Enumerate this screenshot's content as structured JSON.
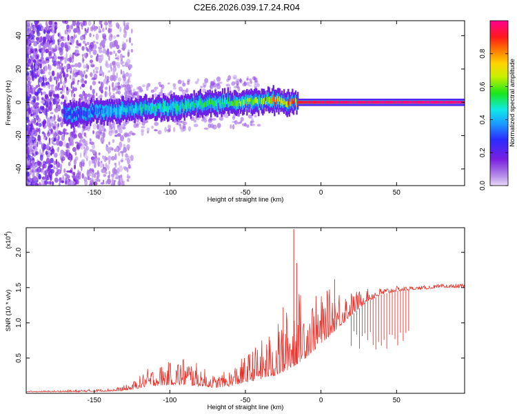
{
  "figure": {
    "title": "C2E6.2026.039.17.24.R04"
  },
  "colors": {
    "line": "#e8312a",
    "frame": "#000000",
    "background": "#ffffff"
  },
  "chart_data": [
    {
      "type": "heatmap",
      "name": "spectrogram",
      "xlabel": "Height of straight line (km)",
      "ylabel": "Frequency (Hz)",
      "xlim": [
        -195,
        95
      ],
      "ylim": [
        -50,
        49
      ],
      "xticks": [
        -150,
        -100,
        -50,
        0,
        50
      ],
      "xtick_labels": [
        "-150",
        "-100",
        "-50",
        "0",
        "50"
      ],
      "yticks": [
        -40,
        -20,
        0,
        20,
        40
      ],
      "ytick_labels": [
        "-40",
        "-20",
        "0",
        "20",
        "40"
      ],
      "colorbar": {
        "label": "Normalized spectral amplitude",
        "range": [
          0,
          1
        ],
        "ticks": [
          0,
          0.2,
          0.4,
          0.6,
          0.8
        ],
        "tick_labels": [
          "0.0",
          "0.2",
          "0.4",
          "0.6",
          "0.8"
        ],
        "colormap": "rainbow (violet → blue → cyan → green → yellow → red → magenta)"
      },
      "ridge": {
        "x": [
          -160,
          -140,
          -120,
          -100,
          -80,
          -60,
          -40,
          -30,
          -20,
          -10,
          0,
          10,
          20,
          40,
          60,
          80,
          95
        ],
        "freq": [
          -7,
          -5,
          -4,
          -3,
          -1,
          0,
          1,
          1,
          0,
          0,
          0,
          0,
          0,
          0,
          0,
          0,
          0
        ],
        "amplitude": [
          0.3,
          0.45,
          0.5,
          0.55,
          0.55,
          0.6,
          0.7,
          0.85,
          0.9,
          0.92,
          0.95,
          0.96,
          0.97,
          0.97,
          0.98,
          0.98,
          0.98
        ]
      }
    },
    {
      "type": "line",
      "name": "snr",
      "xlabel": "Height of straight line (km)",
      "ylabel": "SNR (10 * v/v)",
      "multiplier_label": "(x10",
      "multiplier_exp": "4",
      "multiplier_close": ")",
      "xlim": [
        -195,
        95
      ],
      "ylim": [
        0,
        2.35
      ],
      "xticks": [
        -150,
        -100,
        -50,
        0,
        50
      ],
      "xtick_labels": [
        "-150",
        "-100",
        "-50",
        "0",
        "50"
      ],
      "yticks": [
        0.5,
        1.0,
        1.5,
        2.0
      ],
      "ytick_labels": [
        "0.5",
        "1.0",
        "1.5",
        "2.0"
      ],
      "envelope": {
        "x": [
          -195,
          -160,
          -135,
          -125,
          -115,
          -100,
          -90,
          -80,
          -70,
          -60,
          -50,
          -40,
          -30,
          -20,
          -17,
          -10,
          0,
          10,
          20,
          30,
          40,
          50,
          60,
          70,
          80,
          95
        ],
        "base": [
          0.02,
          0.02,
          0.03,
          0.05,
          0.1,
          0.12,
          0.12,
          0.1,
          0.08,
          0.1,
          0.15,
          0.2,
          0.25,
          0.35,
          0.4,
          0.5,
          0.7,
          0.9,
          1.1,
          1.3,
          1.4,
          1.45,
          1.47,
          1.48,
          1.5,
          1.5
        ],
        "upper": [
          0.03,
          0.05,
          0.08,
          0.15,
          0.35,
          0.45,
          0.55,
          0.4,
          0.25,
          0.35,
          0.55,
          0.75,
          0.95,
          1.3,
          1.5,
          1.4,
          1.4,
          1.55,
          1.45,
          1.48,
          1.5,
          1.52,
          1.52,
          1.53,
          1.55,
          1.55
        ]
      },
      "spikes": [
        {
          "x": -18,
          "y": 2.33
        },
        {
          "x": -16,
          "y": 1.85
        },
        {
          "x": -25,
          "y": 1.22
        },
        {
          "x": 9,
          "y": 1.62
        }
      ],
      "dropouts": {
        "x_start": 20,
        "x_end": 58,
        "count": 22,
        "floor": 0.62
      }
    }
  ]
}
